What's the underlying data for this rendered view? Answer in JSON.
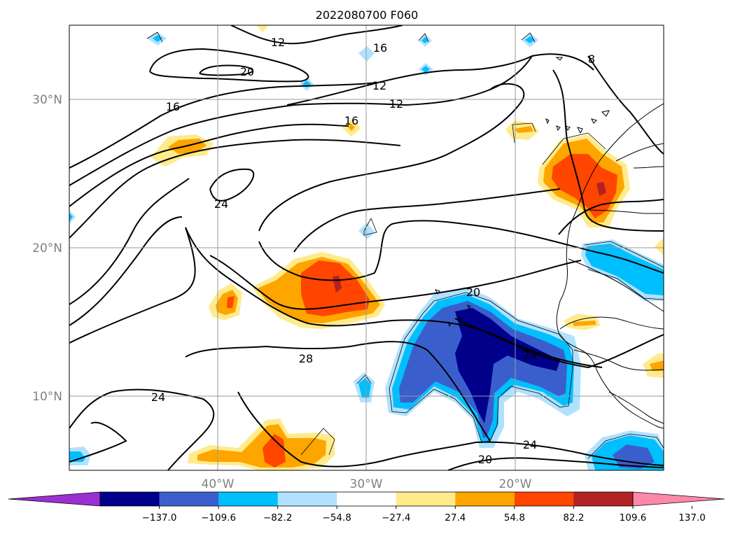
{
  "title": "2022080700 F060",
  "lat_labels": [
    "30°N",
    "20°N",
    "10°N"
  ],
  "lon_labels": [
    "40°W",
    "30°W",
    "20°W"
  ],
  "contour_labels": [
    "12",
    "16",
    "20",
    "12",
    "12",
    "16",
    "16",
    "24",
    "20",
    "28",
    "24",
    "24",
    "24",
    "20",
    "8"
  ],
  "colorbar": {
    "ticks": [
      "−137.0",
      "−109.6",
      "−82.2",
      "−54.8",
      "−27.4",
      "27.4",
      "54.8",
      "82.2",
      "109.6",
      "137.0"
    ],
    "colors": [
      "#9b30d0",
      "#00008b",
      "#3a5fcd",
      "#00bfff",
      "#b0e2ff",
      "#ffffff",
      "#ffeb8c",
      "#ffa500",
      "#ff4500",
      "#b22222",
      "#ff88aa"
    ],
    "extend": "both"
  },
  "colors": {
    "frame": "#000000",
    "grid": "#999999",
    "contour": "#000000",
    "coast": "#000000"
  }
}
